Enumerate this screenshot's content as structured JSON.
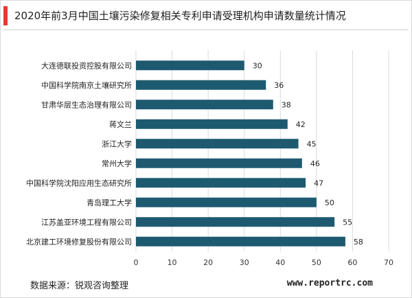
{
  "colors": {
    "accent": "#e8382f",
    "bar": "#1d5a70",
    "grid": "#d9d9d9"
  },
  "header": {
    "title": "2020年前3月中国土壤污染修复相关专利申请受理机构申请数量统计情况"
  },
  "footer": {
    "source": "数据来源：锐观咨询整理",
    "site": "www.reportrc.com"
  },
  "chart_data": {
    "type": "bar",
    "orientation": "horizontal",
    "title": "2020年前3月中国土壤污染修复相关专利申请受理机构申请数量统计情况",
    "categories": [
      "大连德联投资控股有限公司",
      "中国科学院南京土壤研究所",
      "甘肃华层生态治理有限公司",
      "蒋文兰",
      "浙江大学",
      "常州大学",
      "中国科学院沈阳应用生态研究所",
      "青岛理工大学",
      "江苏盖亚环境工程有限公司",
      "北京建工环境修复股份有限公司"
    ],
    "values": [
      30,
      36,
      38,
      42,
      45,
      46,
      47,
      50,
      55,
      58
    ],
    "xlim": [
      0,
      70
    ],
    "xticks": [
      0,
      10,
      20,
      30,
      40,
      50,
      60,
      70
    ],
    "grid": true,
    "data_labels": true
  }
}
